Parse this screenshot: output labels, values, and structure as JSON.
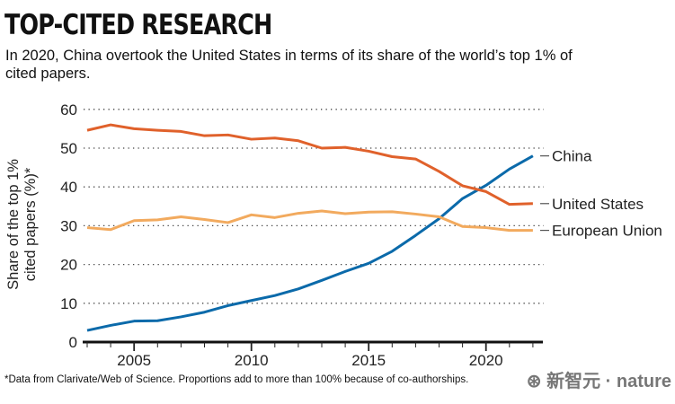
{
  "header": {
    "title": "TOP-CITED RESEARCH",
    "subtitle": "In 2020, China overtook the United States in terms of its share of the world’s top 1% of cited papers."
  },
  "footnote": "*Data from Clarivate/Web of Science. Proportions add to more than 100% because of co-authorships.",
  "watermark": "新智元 nature",
  "chart_data": {
    "type": "line",
    "title": "TOP-CITED RESEARCH",
    "xlabel": "",
    "ylabel": "Share of the top 1% cited papers (%)*",
    "xlim": [
      2003,
      2022
    ],
    "ylim": [
      0,
      60
    ],
    "yticks": [
      0,
      10,
      20,
      30,
      40,
      50,
      60
    ],
    "xticks": [
      2005,
      2010,
      2015,
      2020
    ],
    "grid": "horizontal-dotted",
    "legend": "direct-labels-right",
    "x": [
      2003,
      2004,
      2005,
      2006,
      2007,
      2008,
      2009,
      2010,
      2011,
      2012,
      2013,
      2014,
      2015,
      2016,
      2017,
      2018,
      2019,
      2020,
      2021,
      2022
    ],
    "series": [
      {
        "name": "China",
        "color": "#0b6aaa",
        "values": [
          3,
          4.3,
          5.4,
          5.5,
          6.5,
          7.7,
          9.4,
          10.7,
          12,
          13.7,
          15.9,
          18.2,
          20.3,
          23.4,
          27.5,
          31.8,
          37,
          40.4,
          44.6,
          48
        ]
      },
      {
        "name": "United States",
        "color": "#e0612b",
        "values": [
          54.6,
          56,
          55,
          54.6,
          54.3,
          53.2,
          53.4,
          52.3,
          52.6,
          51.9,
          50,
          50.2,
          49.2,
          47.8,
          47.2,
          44,
          40.3,
          38.8,
          35.5,
          35.7
        ]
      },
      {
        "name": "European Union",
        "color": "#f2aa5e",
        "values": [
          29.5,
          29,
          31.3,
          31.5,
          32.3,
          31.6,
          30.8,
          32.8,
          32.1,
          33.2,
          33.8,
          33.1,
          33.5,
          33.6,
          33,
          32.3,
          29.8,
          29.5,
          28.8,
          28.8
        ]
      }
    ]
  }
}
